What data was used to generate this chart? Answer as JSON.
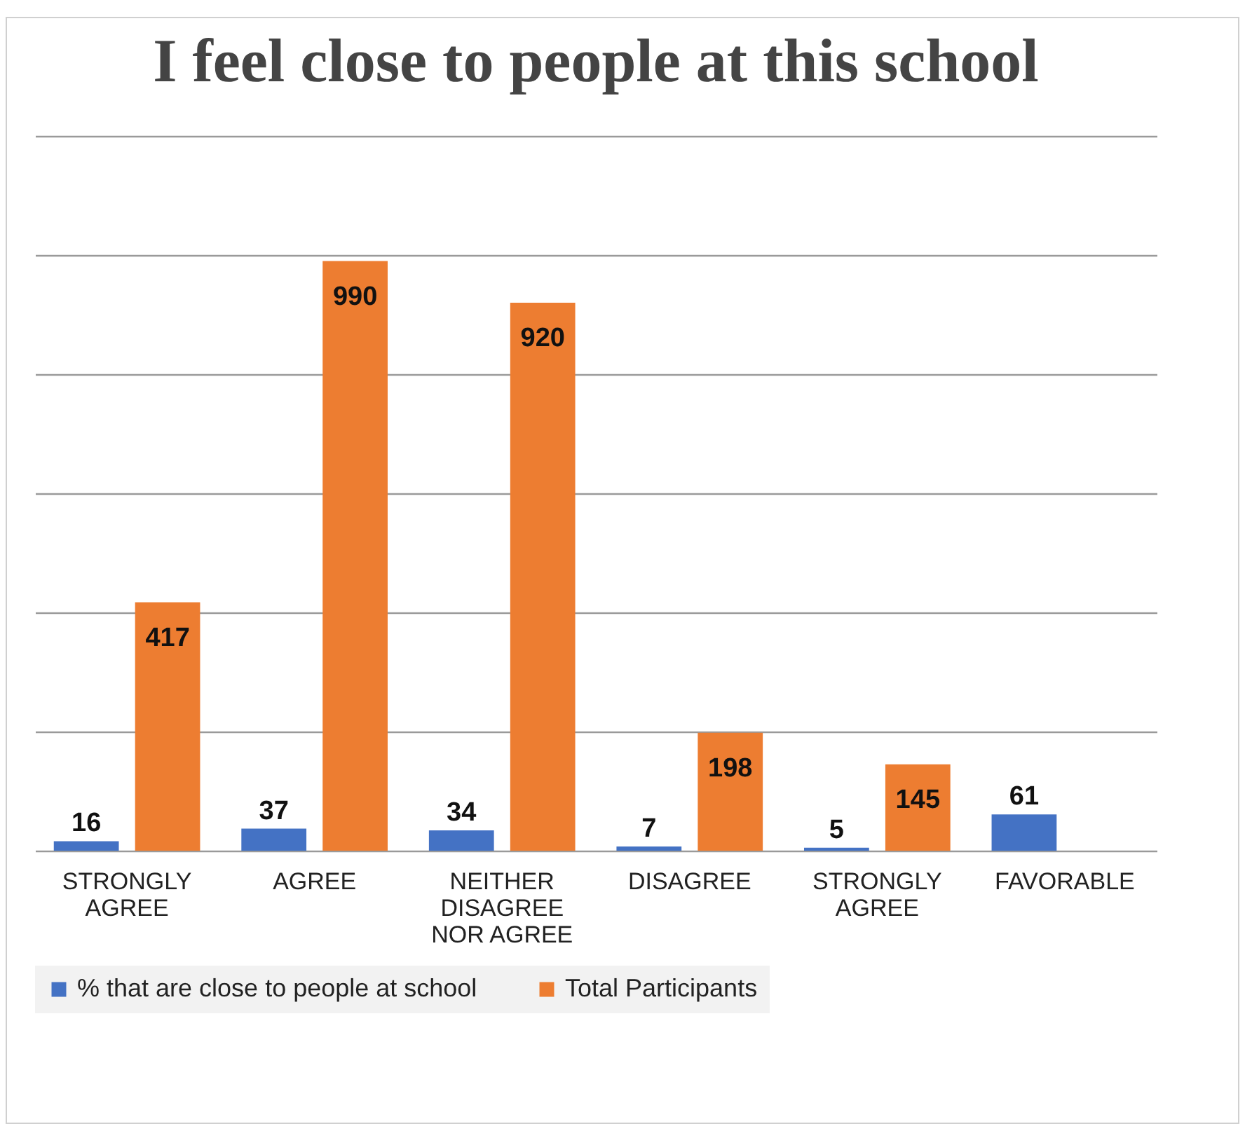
{
  "chart_data": {
    "type": "bar",
    "title": "I feel close to people at this school",
    "categories": [
      "STRONGLY AGREE",
      "AGREE",
      "NEITHER DISAGREE NOR AGREE",
      "DISAGREE",
      "STRONGLY AGREE",
      "FAVORABLE"
    ],
    "series": [
      {
        "name": "% that are close to people at school",
        "color": "#4472c4",
        "values": [
          16,
          37,
          34,
          7,
          5,
          61
        ]
      },
      {
        "name": "Total Participants",
        "color": "#ed7d31",
        "values": [
          417,
          990,
          920,
          198,
          145,
          null
        ]
      }
    ],
    "ylim": [
      0,
      1200
    ],
    "yticks": [
      {
        "value": 0,
        "label": null
      },
      {
        "value": 200,
        "label": null
      },
      {
        "value": 400,
        "label": null
      },
      {
        "value": 600,
        "label": null
      },
      {
        "value": 800,
        "label": null
      },
      {
        "value": 1000,
        "label": null
      },
      {
        "value": 1200,
        "label": null
      }
    ],
    "tick_labels": "x",
    "grid": "y",
    "legend": "bottom",
    "data_labels": true
  }
}
